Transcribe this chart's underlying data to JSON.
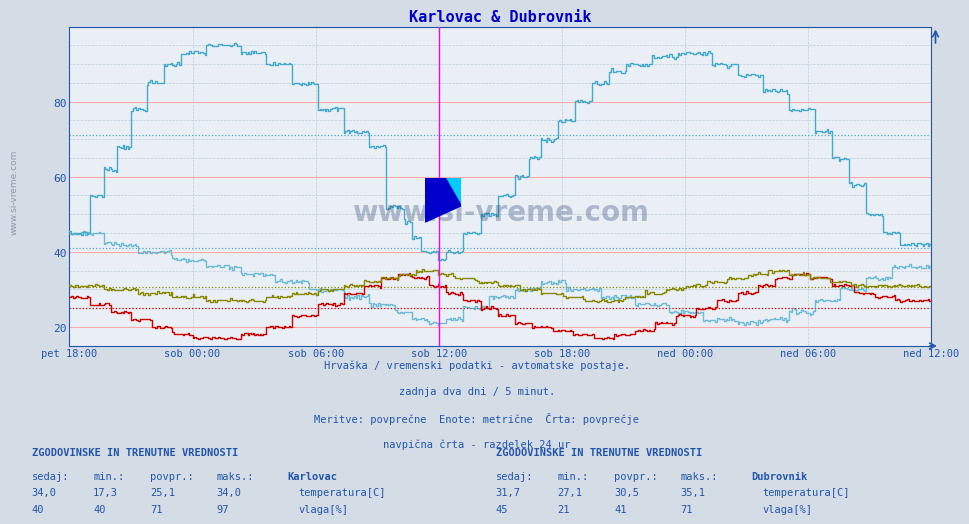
{
  "title": "Karlovac & Dubrovnik",
  "title_color": "#0000cc",
  "bg_color": "#d4dce6",
  "plot_bg_color": "#eaeff5",
  "grid_color_major": "#ffaaaa",
  "grid_color_minor": "#bbccdd",
  "ylim": [
    15,
    100
  ],
  "yticks": [
    20,
    40,
    60,
    80
  ],
  "xlabel_color": "#2255aa",
  "xtick_labels": [
    "pet 18:00",
    "sob 00:00",
    "sob 06:00",
    "sob 12:00",
    "sob 18:00",
    "ned 00:00",
    "ned 06:00",
    "ned 12:00"
  ],
  "subtitle_lines": [
    "Hrvaška / vremenski podatki - avtomatske postaje.",
    "zadnja dva dni / 5 minut.",
    "Meritve: povprečne  Enote: metrične  Črta: povprečje",
    "navpična črta - razdelek 24 ur"
  ],
  "legend_section1_title": "ZGODOVINSKE IN TRENUTNE VREDNOSTI",
  "legend_section1_station": "Karlovac",
  "legend_section1_headers": [
    "sedaj:",
    "min.:",
    "povpr.:",
    "maks.:"
  ],
  "legend_section1_row1": [
    "34,0",
    "17,3",
    "25,1",
    "34,0"
  ],
  "legend_section1_row2": [
    "40",
    "40",
    "71",
    "97"
  ],
  "legend_section1_label1": "temperatura[C]",
  "legend_section1_label2": "vlaga[%]",
  "legend_section1_color1": "#cc0000",
  "legend_section1_color2": "#44aacc",
  "legend_section2_title": "ZGODOVINSKE IN TRENUTNE VREDNOSTI",
  "legend_section2_station": "Dubrovnik",
  "legend_section2_headers": [
    "sedaj:",
    "min.:",
    "povpr.:",
    "maks.:"
  ],
  "legend_section2_row1": [
    "31,7",
    "27,1",
    "30,5",
    "35,1"
  ],
  "legend_section2_row2": [
    "45",
    "21",
    "41",
    "71"
  ],
  "legend_section2_label1": "temperatura[C]",
  "legend_section2_label2": "vlaga[%]",
  "legend_section2_color1": "#888800",
  "legend_section2_color2": "#44aacc",
  "karlovac_temp_color": "#cc0000",
  "karlovac_hum_color": "#44aacc",
  "dubrovnik_temp_color": "#888800",
  "dubrovnik_hum_color": "#44aacc",
  "avg_karlovac_temp": 25.1,
  "avg_karlovac_hum": 71,
  "avg_dubrovnik_temp": 30.5,
  "avg_dubrovnik_hum": 41,
  "vertical_line_magenta": "#ff00ff",
  "vertical_line_dashed_color": "#888888",
  "watermark": "www.si-vreme.com",
  "logo_colors": [
    "#ffff00",
    "#00ccff",
    "#0000cc"
  ]
}
